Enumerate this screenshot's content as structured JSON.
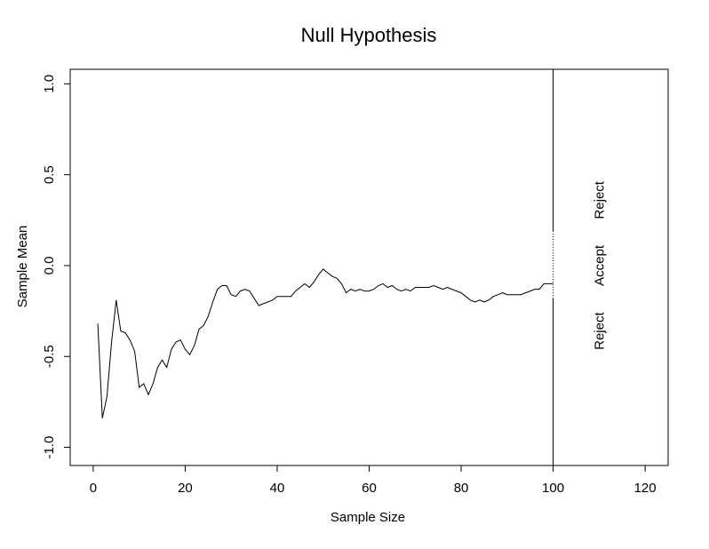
{
  "chart_data": {
    "type": "line",
    "title": "Null Hypothesis",
    "xlabel": "Sample Size",
    "ylabel": "Sample Mean",
    "xlim": [
      -5,
      125
    ],
    "ylim": [
      -1.1,
      1.08
    ],
    "x_ticks": [
      0,
      20,
      40,
      60,
      80,
      100,
      120
    ],
    "x_tick_labels": [
      "0",
      "20",
      "40",
      "60",
      "80",
      "100",
      "120"
    ],
    "y_ticks": [
      -1.0,
      -0.5,
      0.0,
      0.5,
      1.0
    ],
    "y_tick_labels": [
      "-1.0",
      "-0.5",
      "0.0",
      "0.5",
      "1.0"
    ],
    "grid": false,
    "series": [
      {
        "x": [
          1,
          2,
          3,
          4,
          5,
          6,
          7,
          8,
          9,
          10,
          11,
          12,
          13,
          14,
          15,
          16,
          17,
          18,
          19,
          20,
          21,
          22,
          23,
          24,
          25,
          26,
          27,
          28,
          29,
          30,
          31,
          32,
          33,
          34,
          35,
          36,
          37,
          38,
          39,
          40,
          41,
          42,
          43,
          44,
          45,
          46,
          47,
          48,
          49,
          50,
          51,
          52,
          53,
          54,
          55,
          56,
          57,
          58,
          59,
          60,
          61,
          62,
          63,
          64,
          65,
          66,
          67,
          68,
          69,
          70,
          71,
          72,
          73,
          74,
          75,
          76,
          77,
          78,
          79,
          80,
          81,
          82,
          83,
          84,
          85,
          86,
          87,
          88,
          89,
          90,
          91,
          92,
          93,
          94,
          95,
          96,
          97,
          98,
          99,
          100
        ],
        "y": [
          -0.32,
          -0.84,
          -0.72,
          -0.42,
          -0.19,
          -0.36,
          -0.37,
          -0.41,
          -0.47,
          -0.67,
          -0.65,
          -0.71,
          -0.65,
          -0.56,
          -0.52,
          -0.56,
          -0.46,
          -0.42,
          -0.41,
          -0.46,
          -0.49,
          -0.44,
          -0.35,
          -0.33,
          -0.28,
          -0.2,
          -0.13,
          -0.11,
          -0.11,
          -0.16,
          -0.17,
          -0.14,
          -0.13,
          -0.14,
          -0.18,
          -0.22,
          -0.21,
          -0.2,
          -0.19,
          -0.17,
          -0.17,
          -0.17,
          -0.17,
          -0.14,
          -0.12,
          -0.1,
          -0.12,
          -0.09,
          -0.05,
          -0.02,
          -0.04,
          -0.06,
          -0.07,
          -0.1,
          -0.15,
          -0.13,
          -0.14,
          -0.13,
          -0.14,
          -0.14,
          -0.13,
          -0.11,
          -0.1,
          -0.12,
          -0.11,
          -0.13,
          -0.14,
          -0.13,
          -0.14,
          -0.12,
          -0.12,
          -0.12,
          -0.12,
          -0.11,
          -0.12,
          -0.13,
          -0.12,
          -0.13,
          -0.14,
          -0.15,
          -0.17,
          -0.19,
          -0.2,
          -0.19,
          -0.2,
          -0.19,
          -0.17,
          -0.16,
          -0.15,
          -0.16,
          -0.16,
          -0.16,
          -0.16,
          -0.15,
          -0.14,
          -0.13,
          -0.13,
          -0.1,
          -0.1,
          -0.1
        ]
      }
    ],
    "decision_line": {
      "x": 100,
      "accept_range": [
        -0.18,
        0.19
      ]
    },
    "region_labels": [
      {
        "text": "Reject",
        "x": 110,
        "y": 0.36
      },
      {
        "text": "Accept",
        "x": 110,
        "y": 0.0
      },
      {
        "text": "Reject",
        "x": 110,
        "y": -0.36
      }
    ]
  }
}
